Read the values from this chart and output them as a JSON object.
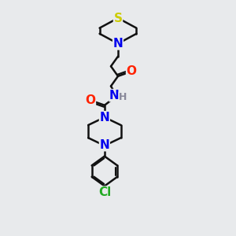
{
  "bg_color": "#e8eaec",
  "atom_colors": {
    "S": "#cccc00",
    "N": "#0000ee",
    "O": "#ff2200",
    "Cl": "#22aa22",
    "H": "#888899",
    "C": "#111111"
  },
  "bond_color": "#111111",
  "bond_width": 1.8,
  "font_size_atom": 11,
  "font_size_h": 9,
  "font_size_cl": 11
}
